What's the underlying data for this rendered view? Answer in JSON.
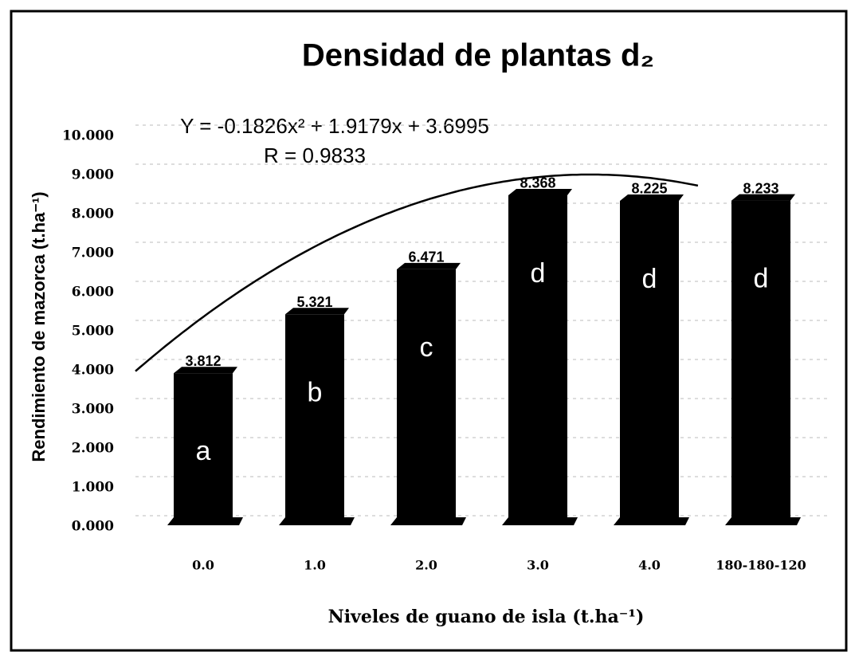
{
  "chart_data": {
    "type": "bar",
    "title": "Densidad de plantas d₂",
    "y_label": "Rendimiento de mazorca (t.ha⁻¹)",
    "x_label": "Niveles de guano de isla (t.ha⁻¹)",
    "categories": [
      "0.0",
      "1.0",
      "2.0",
      "3.0",
      "4.0",
      "180-180-120"
    ],
    "values": [
      3.812,
      5.321,
      6.471,
      8.368,
      8.225,
      8.233
    ],
    "letters": [
      "a",
      "b",
      "c",
      "d",
      "d",
      "d"
    ],
    "color": "#000000",
    "ylim": [
      0,
      10
    ],
    "yticks": [
      {
        "value": 0,
        "label": "0.000"
      },
      {
        "value": 1,
        "label": "1.000"
      },
      {
        "value": 2,
        "label": "2.000"
      },
      {
        "value": 3,
        "label": "3.000"
      },
      {
        "value": 4,
        "label": "4.000"
      },
      {
        "value": 5,
        "label": "5.000"
      },
      {
        "value": 6,
        "label": "6.000"
      },
      {
        "value": 7,
        "label": "7.000"
      },
      {
        "value": 8,
        "label": "8.000"
      },
      {
        "value": 9,
        "label": "9.000"
      },
      {
        "value": 10,
        "label": "10.000"
      }
    ],
    "grid": true,
    "trendline": {
      "label": "Y = -0.1826x² + 1.9179x + 3.6995",
      "r_label": "R = 0.9833",
      "coefficients": [
        -0.1826,
        1.9179,
        3.6995
      ]
    }
  }
}
